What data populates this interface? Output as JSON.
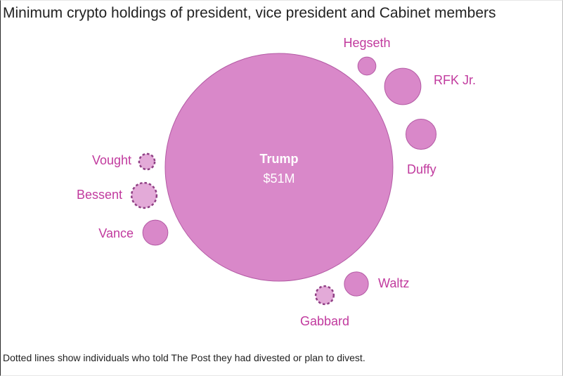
{
  "chart_data": {
    "type": "bubble",
    "title": "Minimum crypto holdings of president, vice president and Cabinet members",
    "footnote": "Dotted lines show individuals who told The Post they had divested or plan to divest.",
    "colors": {
      "fill": "#d988c9",
      "stroke": "#b35aa4",
      "divested_fill": "#e3aad8",
      "divested_stroke": "#8f3f84",
      "label": "#c13a9e",
      "center_label": "#ffffff"
    },
    "units": "USD",
    "holdings": [
      {
        "name": "Trump",
        "display_value": "$51M",
        "value": 51000000,
        "divested": false
      },
      {
        "name": "Hegseth",
        "value": 320000,
        "divested": false
      },
      {
        "name": "RFK Jr.",
        "value": 1300000,
        "divested": false
      },
      {
        "name": "Duffy",
        "value": 900000,
        "divested": false
      },
      {
        "name": "Waltz",
        "value": 570000,
        "divested": false
      },
      {
        "name": "Gabbard",
        "value": 320000,
        "divested": true
      },
      {
        "name": "Vance",
        "value": 620000,
        "divested": false
      },
      {
        "name": "Bessent",
        "value": 620000,
        "divested": true
      },
      {
        "name": "Vought",
        "value": 240000,
        "divested": true
      }
    ]
  }
}
